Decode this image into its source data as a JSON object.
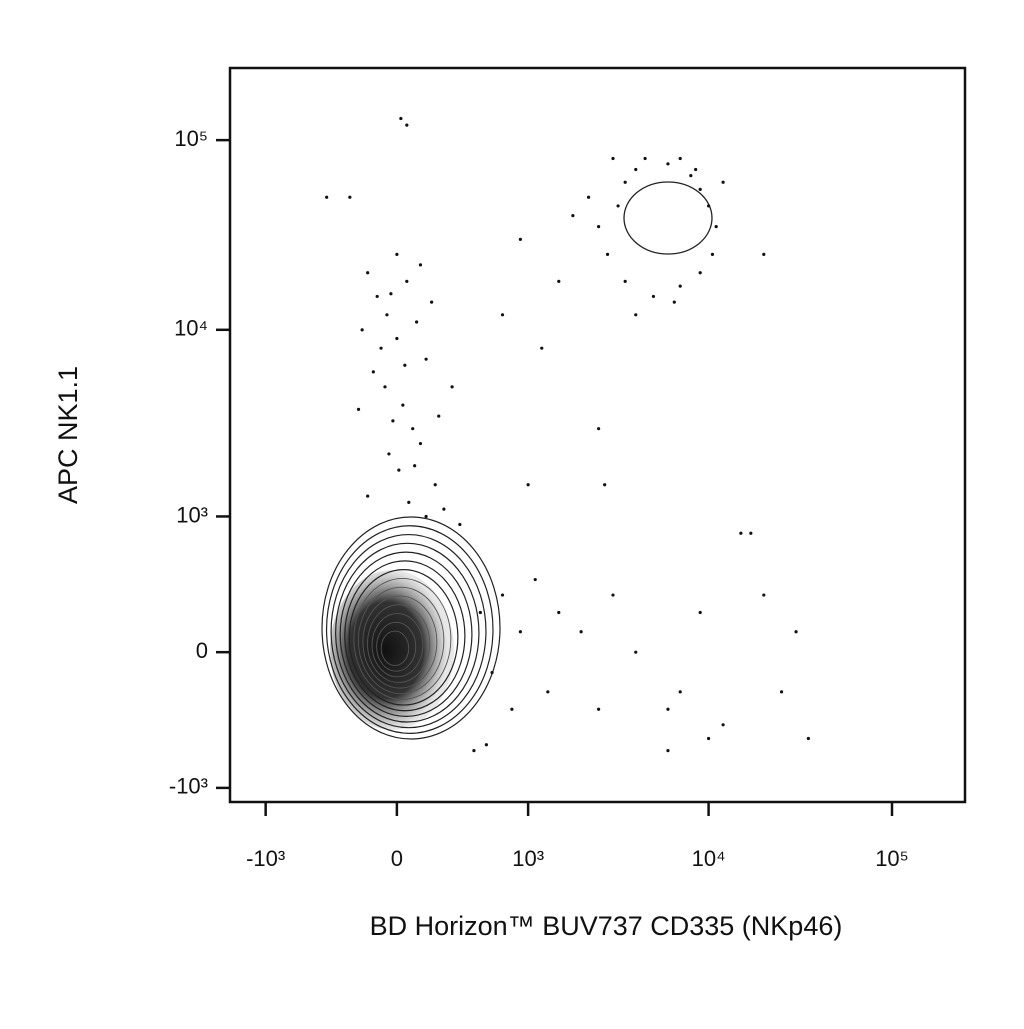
{
  "chart_data": {
    "type": "scatter",
    "x_label": "BD Horizon™ BUV737 CD335 (NKp46)",
    "y_label": "APC NK1.1",
    "scale": "biexponential",
    "color": "#111111",
    "xlim": [
      -1600,
      250000
    ],
    "ylim": [
      -1200,
      240000
    ],
    "xticks": [
      {
        "value": -1000,
        "label": "-10³"
      },
      0,
      {
        "value": 1000,
        "label": "10³"
      },
      {
        "value": 10000,
        "label": "10⁴"
      },
      {
        "value": 100000,
        "label": "10⁵"
      }
    ],
    "yticks": [
      {
        "value": -1000,
        "label": "-10³"
      },
      0,
      {
        "value": 1000,
        "label": "10³"
      },
      {
        "value": 10000,
        "label": "10⁴"
      },
      {
        "value": 100000,
        "label": "10⁵"
      }
    ],
    "x": [
      -150,
      -100,
      -50,
      0,
      50,
      100,
      150,
      -120,
      -60,
      30,
      80,
      120,
      -40,
      10,
      200,
      -150,
      60,
      250,
      -80,
      0,
      120,
      180,
      -180,
      40,
      300,
      220,
      -20,
      90,
      150,
      350,
      -200,
      -30,
      -400,
      -250,
      20,
      50,
      3000,
      3500,
      4000,
      6000,
      7000,
      8000,
      9000,
      10000,
      11000,
      10500,
      9000,
      7000,
      5000,
      3500,
      2800,
      2500,
      3200,
      8500,
      4500,
      6500,
      4000,
      12000,
      2200,
      20000,
      1800,
      1500,
      1200,
      700,
      900,
      2500,
      2700,
      1000,
      500,
      600,
      700,
      800,
      900,
      1100,
      1300,
      1500,
      2000,
      2500,
      3000,
      4000,
      6000,
      7000,
      9000,
      12000,
      15000,
      17000,
      20000,
      25000,
      30000,
      35000,
      10000,
      6000,
      550,
      450
    ],
    "y": [
      20000,
      15000,
      12000,
      9000,
      18000,
      11000,
      7000,
      6000,
      5000,
      4000,
      3000,
      2500,
      2200,
      1800,
      1500,
      1300,
      1200,
      1100,
      8000,
      25000,
      22000,
      14000,
      10000,
      6500,
      5000,
      3500,
      3300,
      1900,
      1000,
      900,
      3800,
      15500,
      50000,
      50000,
      130000,
      120000,
      80000,
      60000,
      70000,
      75000,
      80000,
      65000,
      55000,
      45000,
      35000,
      25000,
      20000,
      17000,
      15000,
      18000,
      25000,
      35000,
      45000,
      70000,
      80000,
      14000,
      12000,
      60000,
      50000,
      25000,
      40000,
      18000,
      8000,
      12000,
      30000,
      3000,
      1500,
      1500,
      200,
      -100,
      300,
      -300,
      100,
      400,
      -200,
      200,
      100,
      -300,
      300,
      0,
      -300,
      -200,
      200,
      -400,
      800,
      800,
      300,
      -200,
      100,
      -500,
      -500,
      -600,
      -550,
      -600
    ]
  }
}
